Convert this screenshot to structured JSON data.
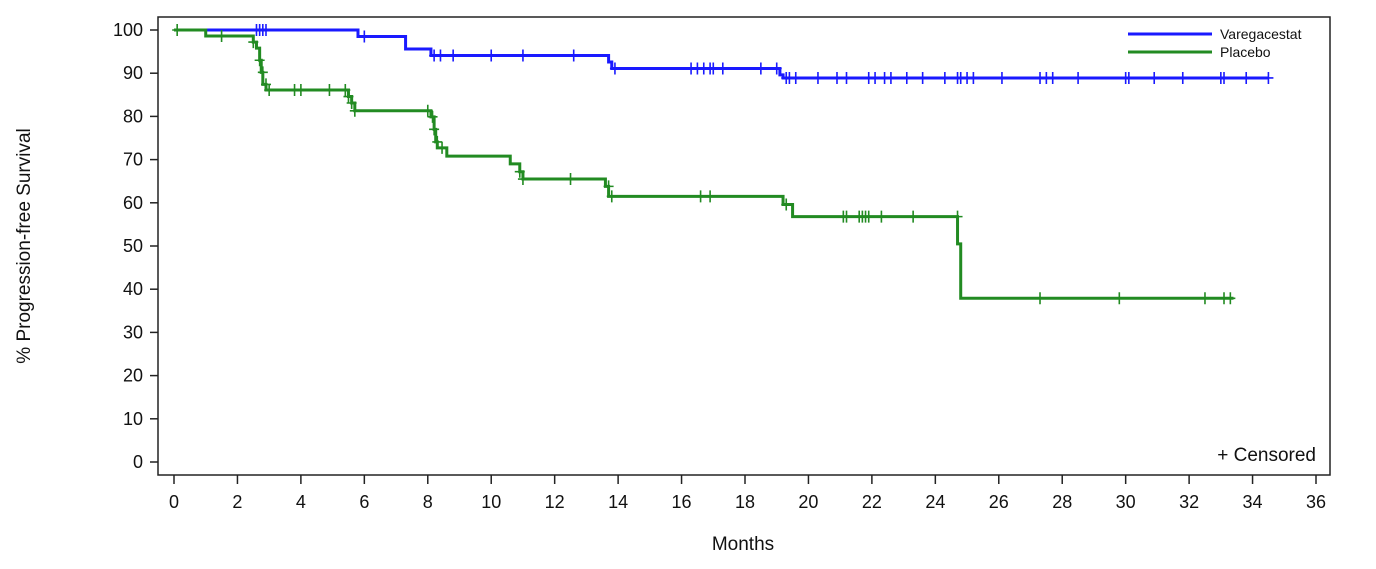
{
  "chart_data": {
    "type": "line",
    "title": "",
    "xlabel": "Months",
    "ylabel": "% Progression-free Survival",
    "xlim": [
      0,
      36
    ],
    "ylim": [
      0,
      100
    ],
    "x_ticks": [
      0,
      2,
      4,
      6,
      8,
      10,
      12,
      14,
      16,
      18,
      20,
      22,
      24,
      26,
      28,
      30,
      32,
      34,
      36
    ],
    "y_ticks": [
      0,
      10,
      20,
      30,
      40,
      50,
      60,
      70,
      80,
      90,
      100
    ],
    "grid": false,
    "legend_position": "top-right",
    "censor_note": "+ Censored",
    "series": [
      {
        "name": "Varegacestat",
        "color": "#1a1aff",
        "steps": [
          [
            0,
            100
          ],
          [
            5.8,
            98.5
          ],
          [
            7.3,
            95.6
          ],
          [
            8.1,
            94.1
          ],
          [
            13.7,
            92.6
          ],
          [
            13.8,
            91.1
          ],
          [
            19.1,
            89.6
          ],
          [
            19.2,
            88.9
          ],
          [
            34.5,
            88.9
          ]
        ],
        "censored": [
          [
            2.6,
            100
          ],
          [
            2.7,
            100
          ],
          [
            2.8,
            100
          ],
          [
            2.9,
            100
          ],
          [
            6.0,
            98.5
          ],
          [
            8.2,
            94.1
          ],
          [
            8.4,
            94.1
          ],
          [
            8.8,
            94.1
          ],
          [
            10.0,
            94.1
          ],
          [
            11.0,
            94.1
          ],
          [
            12.6,
            94.1
          ],
          [
            13.9,
            91.1
          ],
          [
            16.3,
            91.1
          ],
          [
            16.5,
            91.1
          ],
          [
            16.7,
            91.1
          ],
          [
            16.9,
            91.1
          ],
          [
            17.0,
            91.1
          ],
          [
            17.3,
            91.1
          ],
          [
            18.5,
            91.1
          ],
          [
            19.0,
            91.1
          ],
          [
            19.3,
            88.9
          ],
          [
            19.4,
            88.9
          ],
          [
            19.6,
            88.9
          ],
          [
            20.3,
            88.9
          ],
          [
            20.9,
            88.9
          ],
          [
            21.2,
            88.9
          ],
          [
            21.9,
            88.9
          ],
          [
            22.1,
            88.9
          ],
          [
            22.4,
            88.9
          ],
          [
            22.6,
            88.9
          ],
          [
            23.1,
            88.9
          ],
          [
            23.6,
            88.9
          ],
          [
            24.3,
            88.9
          ],
          [
            24.7,
            88.9
          ],
          [
            24.8,
            88.9
          ],
          [
            25.0,
            88.9
          ],
          [
            25.2,
            88.9
          ],
          [
            26.1,
            88.9
          ],
          [
            27.3,
            88.9
          ],
          [
            27.5,
            88.9
          ],
          [
            27.7,
            88.9
          ],
          [
            28.5,
            88.9
          ],
          [
            30.0,
            88.9
          ],
          [
            30.1,
            88.9
          ],
          [
            30.9,
            88.9
          ],
          [
            31.8,
            88.9
          ],
          [
            33.0,
            88.9
          ],
          [
            33.1,
            88.9
          ],
          [
            33.8,
            88.9
          ],
          [
            34.5,
            88.9
          ]
        ]
      },
      {
        "name": "Placebo",
        "color": "#228b22",
        "steps": [
          [
            0,
            100
          ],
          [
            1.0,
            98.6
          ],
          [
            2.5,
            97.2
          ],
          [
            2.6,
            95.8
          ],
          [
            2.7,
            93.0
          ],
          [
            2.75,
            90.2
          ],
          [
            2.8,
            87.4
          ],
          [
            2.9,
            86.1
          ],
          [
            5.5,
            84.6
          ],
          [
            5.6,
            83.1
          ],
          [
            5.7,
            81.3
          ],
          [
            8.1,
            79.9
          ],
          [
            8.2,
            77.0
          ],
          [
            8.25,
            74.1
          ],
          [
            8.3,
            72.7
          ],
          [
            8.6,
            70.8
          ],
          [
            10.6,
            69.0
          ],
          [
            10.9,
            67.2
          ],
          [
            11.0,
            65.5
          ],
          [
            13.6,
            63.8
          ],
          [
            13.7,
            61.5
          ],
          [
            19.2,
            59.6
          ],
          [
            19.5,
            56.8
          ],
          [
            24.7,
            50.5
          ],
          [
            24.8,
            37.9
          ],
          [
            33.4,
            37.9
          ]
        ],
        "censored": [
          [
            0.1,
            100
          ],
          [
            1.5,
            98.6
          ],
          [
            2.5,
            97.2
          ],
          [
            2.7,
            93.0
          ],
          [
            2.8,
            90.2
          ],
          [
            2.9,
            87.4
          ],
          [
            3.0,
            86.1
          ],
          [
            3.8,
            86.1
          ],
          [
            4.0,
            86.1
          ],
          [
            4.9,
            86.1
          ],
          [
            5.4,
            86.1
          ],
          [
            5.5,
            84.6
          ],
          [
            5.6,
            83.1
          ],
          [
            5.7,
            81.3
          ],
          [
            8.0,
            81.3
          ],
          [
            8.15,
            79.9
          ],
          [
            8.2,
            77.0
          ],
          [
            8.3,
            74.1
          ],
          [
            8.45,
            72.7
          ],
          [
            10.9,
            67.2
          ],
          [
            11.0,
            65.5
          ],
          [
            12.5,
            65.5
          ],
          [
            13.7,
            63.8
          ],
          [
            13.8,
            61.5
          ],
          [
            16.6,
            61.5
          ],
          [
            16.9,
            61.5
          ],
          [
            19.3,
            59.6
          ],
          [
            21.1,
            56.8
          ],
          [
            21.2,
            56.8
          ],
          [
            21.6,
            56.8
          ],
          [
            21.7,
            56.8
          ],
          [
            21.8,
            56.8
          ],
          [
            21.9,
            56.8
          ],
          [
            22.3,
            56.8
          ],
          [
            23.3,
            56.8
          ],
          [
            24.7,
            56.8
          ],
          [
            27.3,
            37.9
          ],
          [
            29.8,
            37.9
          ],
          [
            32.5,
            37.9
          ],
          [
            33.1,
            37.9
          ],
          [
            33.3,
            37.9
          ]
        ]
      }
    ]
  }
}
